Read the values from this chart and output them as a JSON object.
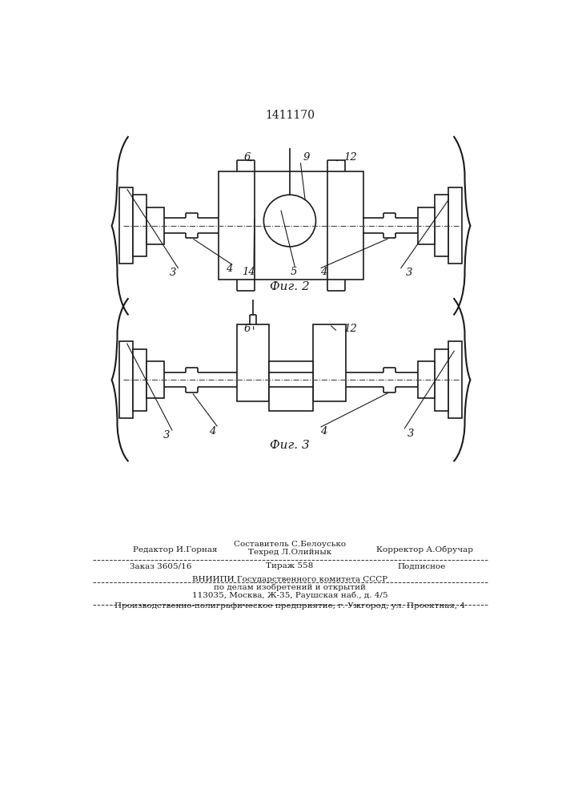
{
  "patent_number": "1411170",
  "fig2_label": "Фиг. 2",
  "fig3_label": "Фиг. 3",
  "footer": {
    "composer_line": "Составитель С.Белоусько",
    "editor_line": "Редактор И.Горная",
    "techred_line": "Техред Л.Олийнык",
    "corrector_line": "Корректор А.Обручар",
    "order_line": "Заказ 3605/16",
    "tirazh_line": "Тираж 558",
    "podpisnoe_line": "Подписное",
    "vniiipi_line": "ВНИИПИ Государственного комитета СССР",
    "podelam_line": "по делам изобретений и открытий",
    "address_line": "113035, Москва, Ж-35, Раушская наб., д. 4/5",
    "factory_line": "Производственно-полиграфическое предприятие, г. Ужгород, ул. Проектная, 4"
  },
  "bg_color": "#ffffff",
  "line_color": "#1a1a1a",
  "lw": 1.2
}
